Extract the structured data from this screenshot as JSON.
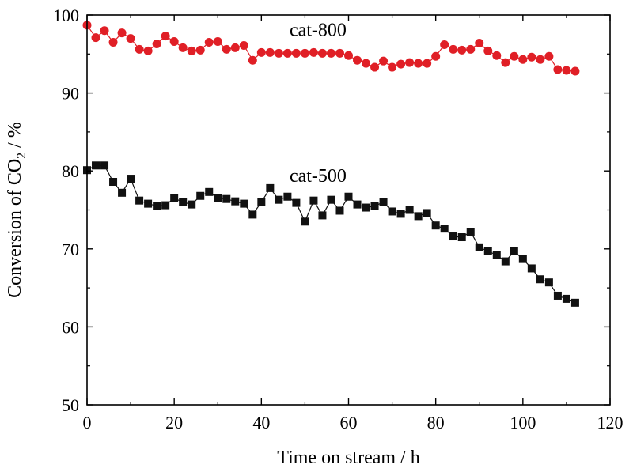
{
  "chart_data": {
    "type": "scatter",
    "xlabel": "Time on stream / h",
    "ylabel_parts": {
      "prefix": "Conversion of CO",
      "subscript": "2",
      "suffix": " / %"
    },
    "xlim": [
      0,
      120
    ],
    "ylim": [
      50,
      100
    ],
    "x_ticks": [
      0,
      20,
      40,
      60,
      80,
      100,
      120
    ],
    "y_ticks": [
      50,
      60,
      70,
      80,
      90,
      100
    ],
    "grid": false,
    "series": [
      {
        "name": "cat-800",
        "color": "#e01f26",
        "marker": "circle",
        "x": [
          0,
          2,
          4,
          6,
          8,
          10,
          12,
          14,
          16,
          18,
          20,
          22,
          24,
          26,
          28,
          30,
          32,
          34,
          36,
          38,
          40,
          42,
          44,
          46,
          48,
          50,
          52,
          54,
          56,
          58,
          60,
          62,
          64,
          66,
          68,
          70,
          72,
          74,
          76,
          78,
          80,
          82,
          84,
          86,
          88,
          90,
          92,
          94,
          96,
          98,
          100,
          102,
          104,
          106,
          108,
          110,
          112
        ],
        "y": [
          98.7,
          97.1,
          98.0,
          96.5,
          97.7,
          97.0,
          95.6,
          95.4,
          96.3,
          97.3,
          96.6,
          95.8,
          95.4,
          95.5,
          96.5,
          96.6,
          95.6,
          95.8,
          96.1,
          94.2,
          95.2,
          95.2,
          95.1,
          95.1,
          95.1,
          95.1,
          95.2,
          95.1,
          95.1,
          95.1,
          94.8,
          94.2,
          93.8,
          93.3,
          94.1,
          93.3,
          93.7,
          93.9,
          93.8,
          93.8,
          94.7,
          96.2,
          95.6,
          95.5,
          95.6,
          96.4,
          95.4,
          94.8,
          93.9,
          94.7,
          94.3,
          94.6,
          94.3,
          94.7,
          93.0,
          92.9,
          92.8
        ]
      },
      {
        "name": "cat-500",
        "color": "#111111",
        "marker": "square",
        "x": [
          0,
          2,
          4,
          6,
          8,
          10,
          12,
          14,
          16,
          18,
          20,
          22,
          24,
          26,
          28,
          30,
          32,
          34,
          36,
          38,
          40,
          42,
          44,
          46,
          48,
          50,
          52,
          54,
          56,
          58,
          60,
          62,
          64,
          66,
          68,
          70,
          72,
          74,
          76,
          78,
          80,
          82,
          84,
          86,
          88,
          90,
          92,
          94,
          96,
          98,
          100,
          102,
          104,
          106,
          108,
          110,
          112
        ],
        "y": [
          80.1,
          80.7,
          80.7,
          78.6,
          77.2,
          79.0,
          76.2,
          75.8,
          75.5,
          75.6,
          76.5,
          76.0,
          75.7,
          76.8,
          77.3,
          76.5,
          76.4,
          76.1,
          75.8,
          74.4,
          76.0,
          77.8,
          76.3,
          76.7,
          75.9,
          73.5,
          76.2,
          74.3,
          76.3,
          74.9,
          76.7,
          75.7,
          75.3,
          75.5,
          76.0,
          74.8,
          74.5,
          75.0,
          74.2,
          74.6,
          73.0,
          72.6,
          71.6,
          71.5,
          72.2,
          70.2,
          69.7,
          69.2,
          68.4,
          69.7,
          68.7,
          67.5,
          66.1,
          65.7,
          64.0,
          63.6,
          63.1
        ]
      }
    ],
    "annotations": [
      {
        "text": "cat-800",
        "x": 53,
        "y": 97.3
      },
      {
        "text": "cat-500",
        "x": 53,
        "y": 78.6
      }
    ]
  }
}
